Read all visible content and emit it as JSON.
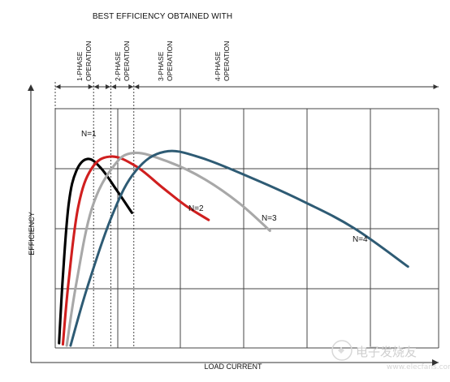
{
  "chart_data": {
    "type": "line",
    "title": "BEST EFFICIENCY OBTAINED WITH",
    "xlabel": "LOAD CURRENT",
    "ylabel": "EFFICIENCY",
    "xlim": [
      0,
      10
    ],
    "ylim": [
      0,
      10
    ],
    "grid": true,
    "legend": "none",
    "phase_regions": [
      {
        "label_line1": "1-PHASE",
        "label_line2": "OPERATION",
        "start": 0.0,
        "end": 1.0
      },
      {
        "label_line1": "2-PHASE",
        "label_line2": "OPERATION",
        "start": 1.0,
        "end": 1.45
      },
      {
        "label_line1": "3-PHASE",
        "label_line2": "OPERATION",
        "start": 1.45,
        "end": 2.05
      },
      {
        "label_line1": "4-PHASE",
        "label_line2": "OPERATION",
        "start": 2.05,
        "end": 10.0
      }
    ],
    "series": [
      {
        "name": "N=1",
        "color": "#000000",
        "points": [
          [
            0.1,
            0.2
          ],
          [
            0.2,
            3.0
          ],
          [
            0.35,
            6.0
          ],
          [
            0.55,
            7.4
          ],
          [
            0.85,
            7.9
          ],
          [
            1.2,
            7.5
          ],
          [
            1.6,
            6.6
          ],
          [
            2.0,
            5.65
          ]
        ]
      },
      {
        "name": "N=2",
        "color": "#d01f1f",
        "points": [
          [
            0.2,
            0.15
          ],
          [
            0.35,
            2.8
          ],
          [
            0.6,
            5.9
          ],
          [
            0.95,
            7.5
          ],
          [
            1.45,
            8.0
          ],
          [
            2.1,
            7.6
          ],
          [
            2.8,
            6.7
          ],
          [
            3.4,
            5.95
          ],
          [
            4.0,
            5.35
          ]
        ]
      },
      {
        "name": "N=3",
        "color": "#a8a8a8",
        "points": [
          [
            0.3,
            0.1
          ],
          [
            0.55,
            2.7
          ],
          [
            0.95,
            5.8
          ],
          [
            1.5,
            7.55
          ],
          [
            2.05,
            8.15
          ],
          [
            3.0,
            7.75
          ],
          [
            3.9,
            7.05
          ],
          [
            4.8,
            6.05
          ],
          [
            5.6,
            4.9
          ]
        ]
      },
      {
        "name": "N=4",
        "color": "#2e5b74",
        "points": [
          [
            0.4,
            0.1
          ],
          [
            0.85,
            2.6
          ],
          [
            1.5,
            5.6
          ],
          [
            2.1,
            7.4
          ],
          [
            2.85,
            8.2
          ],
          [
            3.8,
            7.95
          ],
          [
            5.2,
            7.05
          ],
          [
            6.5,
            6.1
          ],
          [
            7.8,
            5.0
          ],
          [
            9.2,
            3.4
          ]
        ]
      }
    ]
  },
  "watermark": {
    "text": "电子发烧友",
    "subtext": "www.elecfans.com"
  }
}
